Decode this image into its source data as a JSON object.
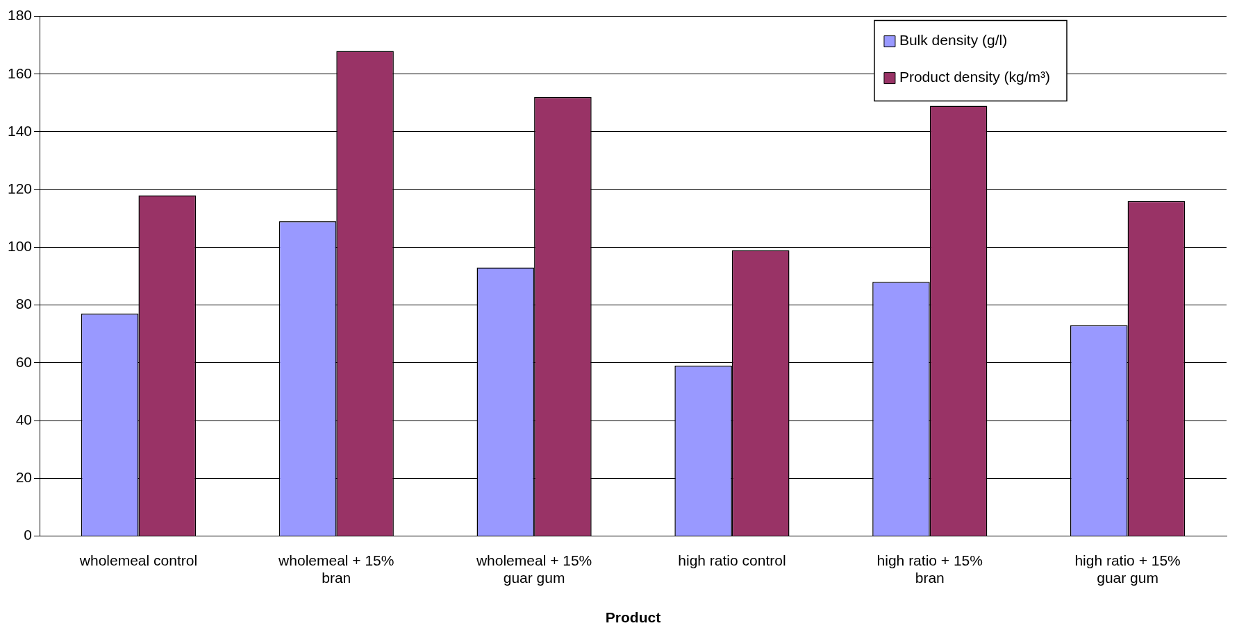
{
  "chart_data": {
    "type": "bar",
    "xlabel": "Product",
    "categories": [
      "wholemeal control",
      "wholemeal + 15% bran",
      "wholemeal + 15% guar gum",
      "high ratio control",
      "high ratio + 15% bran",
      "high ratio + 15% guar gum"
    ],
    "series": [
      {
        "name": "Bulk density (g/l)",
        "color": "#9999ff",
        "values": [
          77,
          109,
          93,
          59,
          88,
          73
        ]
      },
      {
        "name": "Product density (kg/m³)",
        "color": "#993366",
        "values": [
          118,
          168,
          152,
          99,
          149,
          116
        ]
      }
    ],
    "ylim": [
      0,
      180
    ],
    "yticks": [
      0,
      20,
      40,
      60,
      80,
      100,
      120,
      140,
      160,
      180
    ],
    "grid": "y",
    "legend": "top right"
  }
}
